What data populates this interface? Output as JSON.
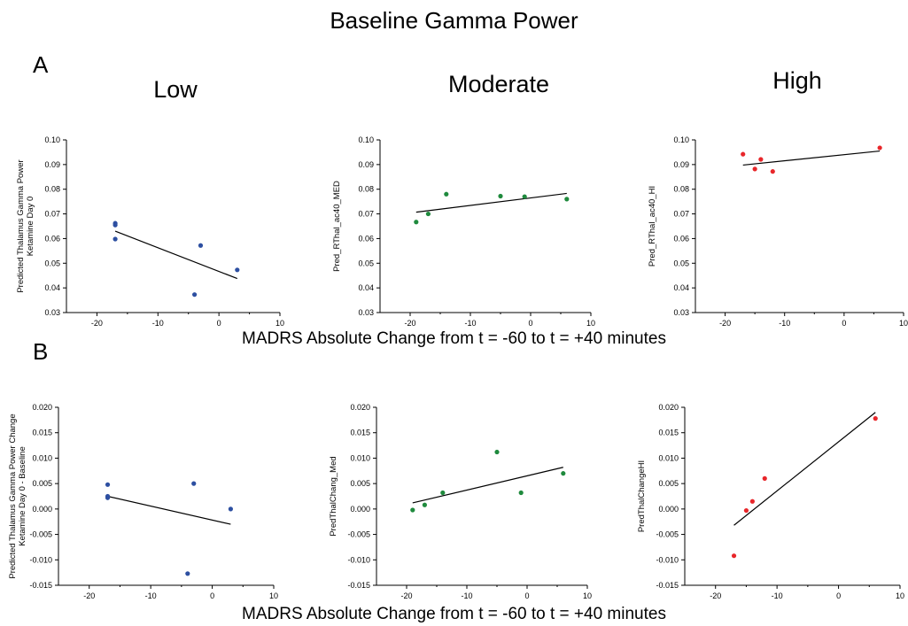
{
  "title": "Baseline Gamma Power",
  "panel_labels": [
    "A",
    "B"
  ],
  "column_titles": [
    "Low",
    "Moderate",
    "High"
  ],
  "shared_xlabel": "MADRS Absolute Change from t = -60 to t = +40 minutes",
  "colors": {
    "low": "#2d4fa1",
    "moderate": "#1f8a3d",
    "high": "#e8262a",
    "fit": "#000000"
  },
  "chart_data": [
    {
      "type": "scatter",
      "row": "A",
      "column": "Low",
      "ylabel": [
        "Predicted Thalamus Gamma Power",
        "Ketamine Day 0"
      ],
      "xlim": [
        -25,
        10
      ],
      "ylim": [
        0.03,
        0.1
      ],
      "xticks": [
        -20,
        -10,
        0,
        10
      ],
      "xtick_labels": [
        "-20",
        "-10",
        "0",
        "10"
      ],
      "yticks": [
        0.03,
        0.04,
        0.05,
        0.06,
        0.07,
        0.08,
        0.09,
        0.1
      ],
      "ytick_labels": [
        "0.03",
        "0.04",
        "0.05",
        "0.06",
        "0.07",
        "0.08",
        "0.09",
        "0.10"
      ],
      "color": "#2d4fa1",
      "points": [
        [
          -17,
          0.0662
        ],
        [
          -17,
          0.0655
        ],
        [
          -17,
          0.0598
        ],
        [
          -4,
          0.0373
        ],
        [
          -3,
          0.0572
        ],
        [
          3,
          0.0473
        ]
      ],
      "fit_line": [
        [
          -17,
          0.063
        ],
        [
          3,
          0.0438
        ]
      ]
    },
    {
      "type": "scatter",
      "row": "A",
      "column": "Moderate",
      "ylabel": [
        "Pred_RThal_ac40_MED"
      ],
      "xlim": [
        -25,
        10
      ],
      "ylim": [
        0.03,
        0.1
      ],
      "xticks": [
        -20,
        -10,
        0,
        10
      ],
      "xtick_labels": [
        "-20",
        "-10",
        "0",
        "10"
      ],
      "yticks": [
        0.03,
        0.04,
        0.05,
        0.06,
        0.07,
        0.08,
        0.09,
        0.1
      ],
      "ytick_labels": [
        "0.03",
        "0.04",
        "0.05",
        "0.06",
        "0.07",
        "0.08",
        "0.09",
        "0.10"
      ],
      "color": "#1f8a3d",
      "points": [
        [
          -19,
          0.0667
        ],
        [
          -17,
          0.07
        ],
        [
          -14,
          0.078
        ],
        [
          -5,
          0.0772
        ],
        [
          -1,
          0.077
        ],
        [
          6,
          0.076
        ]
      ],
      "fit_line": [
        [
          -19,
          0.0707
        ],
        [
          6,
          0.0783
        ]
      ]
    },
    {
      "type": "scatter",
      "row": "A",
      "column": "High",
      "ylabel": [
        "Pred_RThal_ac40_HI"
      ],
      "xlim": [
        -25,
        10
      ],
      "ylim": [
        0.03,
        0.1
      ],
      "xticks": [
        -20,
        -10,
        0,
        10
      ],
      "xtick_labels": [
        "-20",
        "-10",
        "0",
        "10"
      ],
      "yticks": [
        0.03,
        0.04,
        0.05,
        0.06,
        0.07,
        0.08,
        0.09,
        0.1
      ],
      "ytick_labels": [
        "0.03",
        "0.04",
        "0.05",
        "0.06",
        "0.07",
        "0.08",
        "0.09",
        "0.10"
      ],
      "color": "#e8262a",
      "points": [
        [
          -17,
          0.0942
        ],
        [
          -15,
          0.0882
        ],
        [
          -14,
          0.0921
        ],
        [
          -12,
          0.0872
        ],
        [
          6,
          0.0968
        ]
      ],
      "fit_line": [
        [
          -17,
          0.0898
        ],
        [
          6,
          0.0955
        ]
      ]
    },
    {
      "type": "scatter",
      "row": "B",
      "column": "Low",
      "ylabel": [
        "Predicted Thalamus Gamma Power Change",
        "Ketamine Day 0 - Baseline"
      ],
      "xlim": [
        -25,
        10
      ],
      "ylim": [
        -0.015,
        0.02
      ],
      "xticks": [
        -20,
        -10,
        0,
        10
      ],
      "xtick_labels": [
        "-20",
        "-10",
        "0",
        "10"
      ],
      "yticks": [
        -0.015,
        -0.01,
        -0.005,
        0.0,
        0.005,
        0.01,
        0.015,
        0.02
      ],
      "ytick_labels": [
        "-0.015",
        "-0.010",
        "-0.005",
        "0.000",
        "0.005",
        "0.010",
        "0.015",
        "0.020"
      ],
      "color": "#2d4fa1",
      "points": [
        [
          -17,
          0.0048
        ],
        [
          -17,
          0.0025
        ],
        [
          -17,
          0.0022
        ],
        [
          -4,
          -0.0127
        ],
        [
          -3,
          0.005
        ],
        [
          3,
          0.0
        ]
      ],
      "fit_line": [
        [
          -17,
          0.0025
        ],
        [
          3,
          -0.003
        ]
      ]
    },
    {
      "type": "scatter",
      "row": "B",
      "column": "Moderate",
      "ylabel": [
        "PredThalChang_Med"
      ],
      "xlim": [
        -25,
        10
      ],
      "ylim": [
        -0.015,
        0.02
      ],
      "xticks": [
        -20,
        -10,
        0,
        10
      ],
      "xtick_labels": [
        "-20",
        "-10",
        "0",
        "10"
      ],
      "yticks": [
        -0.015,
        -0.01,
        -0.005,
        0.0,
        0.005,
        0.01,
        0.015,
        0.02
      ],
      "ytick_labels": [
        "-0.015",
        "-0.010",
        "-0.005",
        "0.000",
        "0.005",
        "0.010",
        "0.015",
        "0.020"
      ],
      "color": "#1f8a3d",
      "points": [
        [
          -19,
          -0.0002
        ],
        [
          -17,
          0.0008
        ],
        [
          -14,
          0.0032
        ],
        [
          -5,
          0.0112
        ],
        [
          -1,
          0.0032
        ],
        [
          6,
          0.007
        ]
      ],
      "fit_line": [
        [
          -19,
          0.0012
        ],
        [
          6,
          0.0082
        ]
      ]
    },
    {
      "type": "scatter",
      "row": "B",
      "column": "High",
      "ylabel": [
        "PredThalChangeHI"
      ],
      "xlim": [
        -25,
        10
      ],
      "ylim": [
        -0.015,
        0.02
      ],
      "xticks": [
        -20,
        -10,
        0,
        10
      ],
      "xtick_labels": [
        "-20",
        "-10",
        "0",
        "10"
      ],
      "yticks": [
        -0.015,
        -0.01,
        -0.005,
        0.0,
        0.005,
        0.01,
        0.015,
        0.02
      ],
      "ytick_labels": [
        "-0.015",
        "-0.010",
        "-0.005",
        "0.000",
        "0.005",
        "0.010",
        "0.015",
        "0.020"
      ],
      "color": "#e8262a",
      "points": [
        [
          -17,
          -0.0092
        ],
        [
          -15,
          -0.0003
        ],
        [
          -14,
          0.0015
        ],
        [
          -12,
          0.006
        ],
        [
          6,
          0.0178
        ]
      ],
      "fit_line": [
        [
          -17,
          -0.0032
        ],
        [
          6,
          0.019
        ]
      ]
    }
  ]
}
